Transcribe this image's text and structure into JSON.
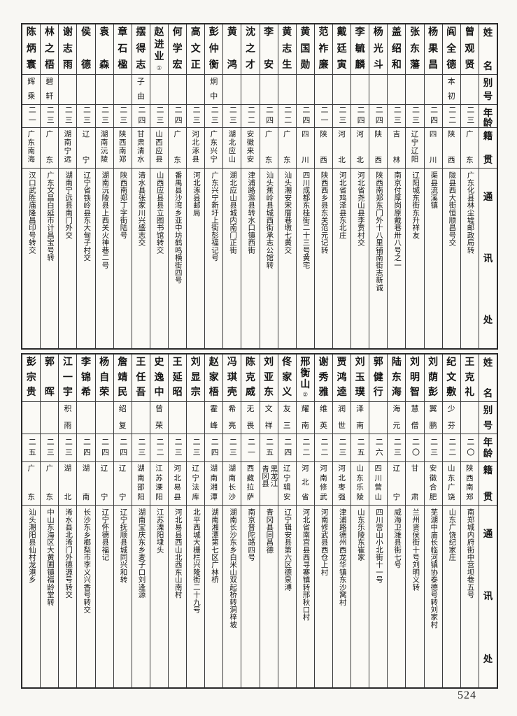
{
  "page_number": "524",
  "headers": {
    "name": "姓名",
    "alias": "别号",
    "age": "年龄",
    "native": "籍贯",
    "address": "通讯处"
  },
  "tables": [
    {
      "people": [
        {
          "name": "曾观贤",
          "note": "",
          "alias": "",
          "age": "二三",
          "native": "广东",
          "address": "广东化县林尘墟邮政局转"
        },
        {
          "name": "阎全德",
          "note": "",
          "alias": "本初",
          "age": "二二",
          "native": "陕西",
          "address": "陇县西大街恒顺昌号交"
        },
        {
          "name": "杨果昌",
          "note": "",
          "alias": "",
          "age": "二四",
          "native": "四川",
          "address": "渠县流溪镇"
        },
        {
          "name": "张东藩",
          "note": "",
          "alias": "",
          "age": "二三",
          "native": "辽宁辽阳",
          "address": "辽阳城东街东升祥友"
        },
        {
          "name": "盖绍和",
          "note": "",
          "alias": "",
          "age": "二三",
          "native": "吉林",
          "address": "南京付厚岗原戴巷卅八号之一"
        },
        {
          "name": "杨光斗",
          "note": "",
          "alias": "",
          "age": "二四",
          "native": "陕西",
          "address": "陕西南郑东门外十八里铺南街志新诚"
        },
        {
          "name": "李毓麟",
          "note": "",
          "alias": "",
          "age": "二四",
          "native": "河北",
          "address": "河北省尧山县李贾村交"
        },
        {
          "name": "戴廷寅",
          "note": "",
          "alias": "",
          "age": "二三",
          "native": "河北",
          "address": "河北省鸡泽县东北庄"
        },
        {
          "name": "范祚廉",
          "note": "",
          "alias": "",
          "age": "二一",
          "native": "陕西",
          "address": "陕西西乡县东关范元记转"
        },
        {
          "name": "黄国勋",
          "note": "",
          "alias": "",
          "age": "二四",
          "native": "四川",
          "address": "四川成都东桂街二十三号黄宅"
        },
        {
          "name": "黄志生",
          "note": "",
          "alias": "",
          "age": "二二",
          "native": "广东",
          "address": "汕头潮安宋厝巷墩七黄交"
        },
        {
          "name": "李安",
          "note": "",
          "alias": "",
          "age": "二四",
          "native": "广东",
          "address": "汕头蕉岭县城西街承志公馆转"
        },
        {
          "name": "沈之才",
          "note": "",
          "alias": "",
          "age": "二二",
          "native": "安徽来安",
          "address": "津浦路滁县转水口镇西街"
        },
        {
          "name": "黄鸿",
          "note": "",
          "alias": "",
          "age": "二三",
          "native": "湖北应山",
          "address": "湖北应山县城内南门正街"
        },
        {
          "name": "彭仲衡",
          "note": "",
          "alias": "炯中",
          "age": "二三",
          "native": "广东兴宁",
          "address": "广东兴宁新圩上街彭福记号"
        },
        {
          "name": "高文正",
          "note": "",
          "alias": "",
          "age": "二三",
          "native": "河北涿县",
          "address": "河北涿县邮局"
        },
        {
          "name": "何学宏",
          "note": "",
          "alias": "",
          "age": "二四",
          "native": "广东",
          "address": "番禺县沙湾乡亚中坊鹤鸣横街四号"
        },
        {
          "name": "赵进业",
          "note": "①",
          "alias": "",
          "age": "二三",
          "native": "山西应县",
          "address": "山西应县县立图书馆转交"
        },
        {
          "name": "摆得志",
          "note": "",
          "alias": "子由",
          "age": "二四",
          "native": "甘肃清水",
          "address": "清水县张家川兴盛志交"
        },
        {
          "name": "章石楹",
          "note": "",
          "alias": "",
          "age": "二三",
          "native": "陕西南郑",
          "address": "陕西南郑丁字街陆号"
        },
        {
          "name": "袁森",
          "note": "",
          "alias": "",
          "age": "二三",
          "native": "湖南沅陵",
          "address": "湖南沅陵县上西关火神巷二号"
        },
        {
          "name": "侯德",
          "note": "",
          "alias": "",
          "age": "二三",
          "native": "辽宁",
          "address": "辽宁省铁岭县东大甸子村交"
        },
        {
          "name": "谢志雨",
          "note": "",
          "alias": "",
          "age": "二三",
          "native": "湖南宁远",
          "address": "湖南宁远县南门外交"
        },
        {
          "name": "林之梧",
          "note": "",
          "alias": "碧轩",
          "age": "二三",
          "native": "广东",
          "address": "广东文昌白延市计昌宝号转"
        },
        {
          "name": "陈炳寰",
          "note": "",
          "alias": "辉乘",
          "age": "二一",
          "native": "广东南海",
          "address": "汉口武胜庙隆昌印号转交"
        }
      ]
    },
    {
      "people": [
        {
          "name": "王克礼",
          "note": "",
          "alias": "",
          "age": "二〇",
          "native": "陕西南郑",
          "address": "南郑城内府街中营坝巷五号"
        },
        {
          "name": "纪文敷",
          "note": "",
          "alias": "少芬",
          "age": "二二",
          "native": "山东广饶",
          "address": "山东广饶纪家庄"
        },
        {
          "name": "刘荫彭",
          "note": "",
          "alias": "翼鹏",
          "age": "二三",
          "native": "安徽合肥",
          "address": "芜湖中庙长临河镇协泰德号转刘家村"
        },
        {
          "name": "刘明智",
          "note": "",
          "alias": "慧僧",
          "age": "二〇",
          "native": "甘肃",
          "address": "兰州贤侯街十号刘明义转"
        },
        {
          "name": "陆东海",
          "note": "",
          "alias": "海元",
          "age": "二三",
          "native": "辽宁",
          "address": "威海卫潍县街七号"
        },
        {
          "name": "郭健行",
          "note": "",
          "alias": "",
          "age": "二六",
          "native": "四川营山",
          "address": "四川营山小北街十一号"
        },
        {
          "name": "刘玉璞",
          "note": "",
          "alias": "泽南",
          "age": "二五",
          "native": "山东乐陵",
          "address": "山东乐陵东崔家"
        },
        {
          "name": "贾鸿逵",
          "note": "",
          "alias": "润世",
          "age": "二三",
          "native": "河北枣强",
          "address": "津浦路德州西龙华镇东沙窝村"
        },
        {
          "name": "谢秀雅",
          "note": "",
          "alias": "维英",
          "age": "二二",
          "native": "河南修武",
          "address": "河南修武县西仓上村"
        },
        {
          "name": "邢衡山",
          "note": "②",
          "alias": "耀南",
          "age": "二二",
          "native": "河北省",
          "address": "河北省南宫县西寻寨镇转邢秋口村"
        },
        {
          "name": "佟家义",
          "note": "",
          "alias": "友三",
          "age": "二四",
          "native": "辽宁辑安",
          "address": "辽宁辑安县第六区德泉溥"
        },
        {
          "name": "刘亚东",
          "note": "",
          "alias": "文祥",
          "age": "二五",
          "native": "黑龙江青冈县",
          "address": "青冈县同昌德"
        },
        {
          "name": "陈克威",
          "note": "",
          "alias": "无畏",
          "age": "二一",
          "native": "西藏拉萨",
          "address": "南京普陀路四号"
        },
        {
          "name": "冯琪壳",
          "note": "",
          "alias": "希亮",
          "age": "二三",
          "native": "湖南长沙",
          "address": "湖南长沙东乡白米山双起桥转洞梓坡"
        },
        {
          "name": "赵家梧",
          "note": "",
          "alias": "霍峰",
          "age": "二四",
          "native": "湖南湘潭",
          "address": "湖南湘潭第七区广林桥"
        },
        {
          "name": "刘显宗",
          "note": "",
          "alias": "",
          "age": "二三",
          "native": "辽宁法库",
          "address": "北平西城大栅栏兴隆街二十九号"
        },
        {
          "name": "王延昭",
          "note": "",
          "alias": "",
          "age": "二三",
          "native": "河北易县",
          "address": "河北易县西山北西东山南村"
        },
        {
          "name": "史逸中",
          "note": "",
          "alias": "曾荣",
          "age": "二二",
          "native": "江苏溧阳",
          "address": "江苏溧阳埭头"
        },
        {
          "name": "王任吾",
          "note": "",
          "alias": "",
          "age": "二三",
          "native": "湖南邵阳",
          "address": "湖南宝庆东乡麦子口刘逢源"
        },
        {
          "name": "詹靖民",
          "note": "",
          "alias": "绍复",
          "age": "二四",
          "native": "辽宁",
          "address": "辽宁抚顺县城同兴和转"
        },
        {
          "name": "杨自荣",
          "note": "",
          "alias": "",
          "age": "二四",
          "native": "辽宁",
          "address": "辽宁怀德县福记"
        },
        {
          "name": "李锦希",
          "note": "",
          "alias": "",
          "age": "二四",
          "native": "湖南",
          "address": "长沙东乡榔梨市李义兴香号转交"
        },
        {
          "name": "江一宇",
          "note": "",
          "alias": "积雨",
          "age": "二三",
          "native": "湖北",
          "address": "浠水县北浠门外德源号转交"
        },
        {
          "name": "郭晖",
          "note": "",
          "alias": "",
          "age": "二三",
          "native": "广东",
          "address": "中山东海区大黄圃镇福龄堂转"
        },
        {
          "name": "彭宗贵",
          "note": "",
          "alias": "",
          "age": "二五",
          "native": "广东",
          "address": "汕头潮阳县仙村龙港乡"
        }
      ]
    }
  ]
}
